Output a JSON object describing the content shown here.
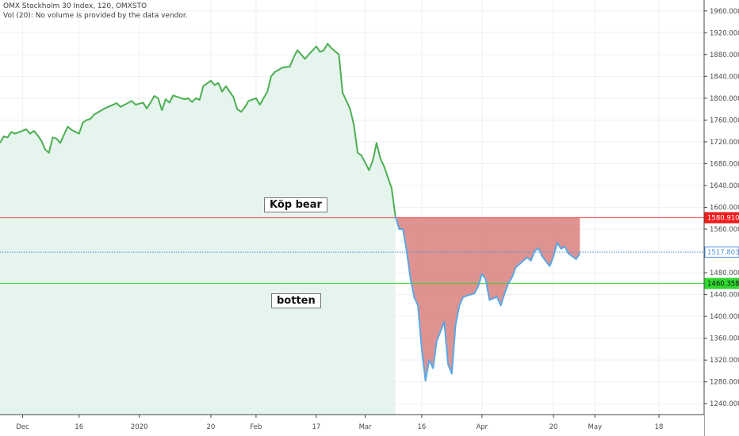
{
  "header": {
    "line1": "OMX Stockholm 30 Index, 120, OMXSTO",
    "line2": "Vol (20): No volume is provided by the data vendor."
  },
  "annotations": {
    "kop_bear": "Köp bear",
    "botten": "botten"
  },
  "colors": {
    "price_above": "#4caf50",
    "price_below": "#5aa7e6",
    "fill_above": "#e6f4ee",
    "fill_below": "#d9807c",
    "line_red": "#ef5350",
    "line_blue": "#4a90e2",
    "line_green": "#36d136",
    "tag_red": "#f21b1b",
    "tag_blue": "#ffffff",
    "tag_green": "#2fd82f"
  },
  "chart_data": {
    "type": "area",
    "ylim": [
      1220,
      1980
    ],
    "y_ticks": [
      1240,
      1280,
      1320,
      1360,
      1400,
      1440,
      1480,
      1520,
      1560,
      1600,
      1640,
      1680,
      1720,
      1760,
      1800,
      1840,
      1880,
      1920,
      1960
    ],
    "y_tick_labels": [
      "1240.0000",
      "1280.0000",
      "1320.0000",
      "1360.0000",
      "1400.0000",
      "1440.0000",
      "1480.0000",
      "1520.0000",
      "1560.0000",
      "1600.0000",
      "1640.0000",
      "1680.0000",
      "1720.0000",
      "1760.0000",
      "1800.0000",
      "1840.0000",
      "1880.0000",
      "1920.0000",
      "1960.0000"
    ],
    "x_range": [
      "2019-11-25",
      "2020-05-30"
    ],
    "x_ticks": [
      {
        "date": "2019-12-01",
        "label": "Dec"
      },
      {
        "date": "2019-12-16",
        "label": "16"
      },
      {
        "date": "2020-01-01",
        "label": "2020"
      },
      {
        "date": "2020-01-20",
        "label": "20"
      },
      {
        "date": "2020-02-01",
        "label": "Feb"
      },
      {
        "date": "2020-02-17",
        "label": "17"
      },
      {
        "date": "2020-03-01",
        "label": "Mar"
      },
      {
        "date": "2020-03-16",
        "label": "16"
      },
      {
        "date": "2020-04-01",
        "label": "Apr"
      },
      {
        "date": "2020-04-20",
        "label": "20"
      },
      {
        "date": "2020-05-01",
        "label": "May"
      },
      {
        "date": "2020-05-18",
        "label": "18"
      }
    ],
    "horizontal_lines": [
      {
        "value": 1580.9104,
        "label": "1580.9104",
        "style": "solid"
      },
      {
        "value": 1517.803,
        "label": "1517.8030",
        "style": "dotted"
      },
      {
        "value": 1460.3583,
        "label": "1460.3583",
        "style": "solid"
      }
    ],
    "series": [
      {
        "values": [
          [
            "2019-11-25",
            1718
          ],
          [
            "2019-11-26",
            1730
          ],
          [
            "2019-11-27",
            1728
          ],
          [
            "2019-11-28",
            1738
          ],
          [
            "2019-11-29",
            1735
          ],
          [
            "2019-12-02",
            1743
          ],
          [
            "2019-12-03",
            1735
          ],
          [
            "2019-12-04",
            1740
          ],
          [
            "2019-12-05",
            1732
          ],
          [
            "2019-12-06",
            1722
          ],
          [
            "2019-12-07",
            1706
          ],
          [
            "2019-12-08",
            1700
          ],
          [
            "2019-12-09",
            1728
          ],
          [
            "2019-12-10",
            1726
          ],
          [
            "2019-12-11",
            1718
          ],
          [
            "2019-12-12",
            1733
          ],
          [
            "2019-12-13",
            1748
          ],
          [
            "2019-12-14",
            1742
          ],
          [
            "2019-12-16",
            1735
          ],
          [
            "2019-12-17",
            1755
          ],
          [
            "2019-12-18",
            1760
          ],
          [
            "2019-12-19",
            1762
          ],
          [
            "2019-12-20",
            1770
          ],
          [
            "2019-12-23",
            1782
          ],
          [
            "2019-12-26",
            1791
          ],
          [
            "2019-12-27",
            1784
          ],
          [
            "2019-12-30",
            1795
          ],
          [
            "2019-12-31",
            1788
          ],
          [
            "2020-01-02",
            1792
          ],
          [
            "2020-01-03",
            1781
          ],
          [
            "2020-01-05",
            1804
          ],
          [
            "2020-01-06",
            1800
          ],
          [
            "2020-01-07",
            1778
          ],
          [
            "2020-01-08",
            1798
          ],
          [
            "2020-01-09",
            1792
          ],
          [
            "2020-01-10",
            1805
          ],
          [
            "2020-01-13",
            1798
          ],
          [
            "2020-01-14",
            1800
          ],
          [
            "2020-01-15",
            1793
          ],
          [
            "2020-01-16",
            1800
          ],
          [
            "2020-01-17",
            1797
          ],
          [
            "2020-01-18",
            1822
          ],
          [
            "2020-01-20",
            1832
          ],
          [
            "2020-01-21",
            1824
          ],
          [
            "2020-01-22",
            1828
          ],
          [
            "2020-01-23",
            1812
          ],
          [
            "2020-01-24",
            1822
          ],
          [
            "2020-01-26",
            1802
          ],
          [
            "2020-01-27",
            1780
          ],
          [
            "2020-01-28",
            1775
          ],
          [
            "2020-01-29",
            1783
          ],
          [
            "2020-01-30",
            1795
          ],
          [
            "2020-02-01",
            1800
          ],
          [
            "2020-02-02",
            1788
          ],
          [
            "2020-02-03",
            1800
          ],
          [
            "2020-02-04",
            1812
          ],
          [
            "2020-02-05",
            1840
          ],
          [
            "2020-02-06",
            1848
          ],
          [
            "2020-02-07",
            1852
          ],
          [
            "2020-02-08",
            1856
          ],
          [
            "2020-02-10",
            1858
          ],
          [
            "2020-02-11",
            1875
          ],
          [
            "2020-02-12",
            1888
          ],
          [
            "2020-02-13",
            1880
          ],
          [
            "2020-02-14",
            1872
          ],
          [
            "2020-02-15",
            1880
          ],
          [
            "2020-02-17",
            1895
          ],
          [
            "2020-02-18",
            1885
          ],
          [
            "2020-02-19",
            1888
          ],
          [
            "2020-02-20",
            1900
          ],
          [
            "2020-02-21",
            1892
          ],
          [
            "2020-02-23",
            1880
          ],
          [
            "2020-02-24",
            1810
          ],
          [
            "2020-02-25",
            1795
          ],
          [
            "2020-02-26",
            1780
          ],
          [
            "2020-02-27",
            1750
          ],
          [
            "2020-02-28",
            1700
          ],
          [
            "2020-02-29",
            1695
          ],
          [
            "2020-03-02",
            1668
          ],
          [
            "2020-03-03",
            1685
          ],
          [
            "2020-03-04",
            1718
          ],
          [
            "2020-03-05",
            1690
          ],
          [
            "2020-03-06",
            1675
          ],
          [
            "2020-03-08",
            1635
          ],
          [
            "2020-03-09",
            1584
          ],
          [
            "2020-03-10",
            1560
          ],
          [
            "2020-03-11",
            1560
          ],
          [
            "2020-03-12",
            1520
          ],
          [
            "2020-03-13",
            1470
          ],
          [
            "2020-03-14",
            1435
          ],
          [
            "2020-03-15",
            1420
          ],
          [
            "2020-03-16",
            1340
          ],
          [
            "2020-03-17",
            1282
          ],
          [
            "2020-03-18",
            1320
          ],
          [
            "2020-03-19",
            1305
          ],
          [
            "2020-03-20",
            1355
          ],
          [
            "2020-03-22",
            1390
          ],
          [
            "2020-03-23",
            1312
          ],
          [
            "2020-03-24",
            1295
          ],
          [
            "2020-03-25",
            1385
          ],
          [
            "2020-03-26",
            1420
          ],
          [
            "2020-03-27",
            1435
          ],
          [
            "2020-03-28",
            1438
          ],
          [
            "2020-03-30",
            1442
          ],
          [
            "2020-03-31",
            1455
          ],
          [
            "2020-04-01",
            1478
          ],
          [
            "2020-04-02",
            1468
          ],
          [
            "2020-04-03",
            1430
          ],
          [
            "2020-04-05",
            1436
          ],
          [
            "2020-04-06",
            1420
          ],
          [
            "2020-04-07",
            1442
          ],
          [
            "2020-04-08",
            1460
          ],
          [
            "2020-04-09",
            1472
          ],
          [
            "2020-04-10",
            1490
          ],
          [
            "2020-04-13",
            1508
          ],
          [
            "2020-04-14",
            1502
          ],
          [
            "2020-04-15",
            1520
          ],
          [
            "2020-04-16",
            1525
          ],
          [
            "2020-04-17",
            1510
          ],
          [
            "2020-04-19",
            1492
          ],
          [
            "2020-04-20",
            1510
          ],
          [
            "2020-04-21",
            1535
          ],
          [
            "2020-04-22",
            1524
          ],
          [
            "2020-04-23",
            1528
          ],
          [
            "2020-04-24",
            1515
          ],
          [
            "2020-04-25",
            1510
          ],
          [
            "2020-04-26",
            1505
          ],
          [
            "2020-04-27",
            1515
          ]
        ]
      }
    ]
  }
}
